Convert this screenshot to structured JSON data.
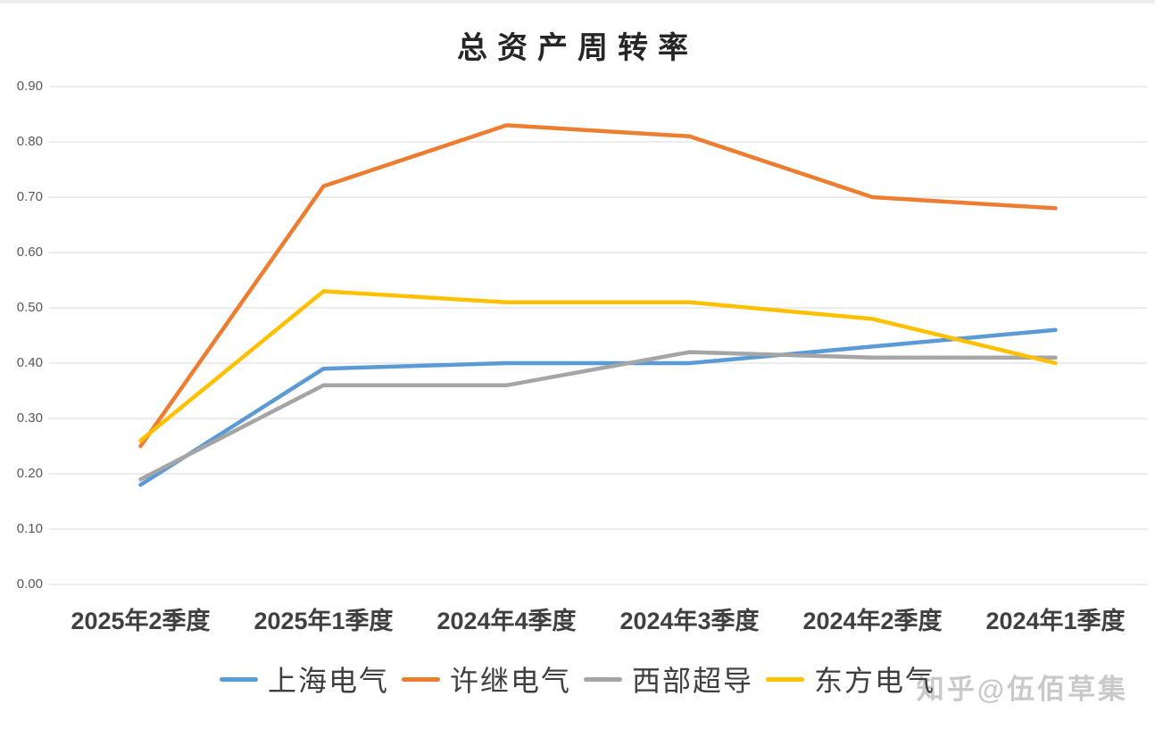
{
  "watermark": {
    "text": "知乎@伍佰草集",
    "color": "#c9c9c9"
  },
  "chart_data": {
    "type": "line",
    "title": "总资产周转率",
    "categories": [
      "2025年2季度",
      "2025年1季度",
      "2024年4季度",
      "2024年3季度",
      "2024年2季度",
      "2024年1季度"
    ],
    "series": [
      {
        "name": "上海电气",
        "color": "#5B9BD5",
        "values": [
          0.18,
          0.39,
          0.4,
          0.4,
          0.43,
          0.46
        ]
      },
      {
        "name": "许继电气",
        "color": "#ED7D31",
        "values": [
          0.25,
          0.72,
          0.83,
          0.81,
          0.7,
          0.68
        ]
      },
      {
        "name": "西部超导",
        "color": "#A5A5A5",
        "values": [
          0.19,
          0.36,
          0.36,
          0.42,
          0.41,
          0.41
        ]
      },
      {
        "name": "东方电气",
        "color": "#FFC000",
        "values": [
          0.26,
          0.53,
          0.51,
          0.51,
          0.48,
          0.4
        ]
      }
    ],
    "xlabel": "",
    "ylabel": "",
    "ylim": [
      0.0,
      0.9
    ],
    "ytick_step": 0.1,
    "ytick_labels": [
      "0.00",
      "0.10",
      "0.20",
      "0.30",
      "0.40",
      "0.50",
      "0.60",
      "0.70",
      "0.80",
      "0.90"
    ],
    "grid": true,
    "gridline_color": "#D9D9D9",
    "legend_position": "bottom"
  }
}
